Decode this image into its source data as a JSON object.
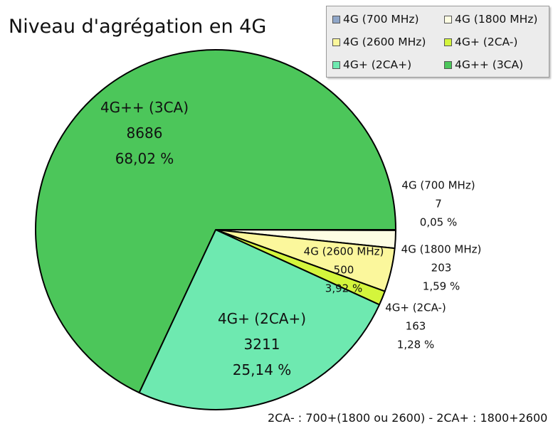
{
  "chart_data": {
    "type": "pie",
    "title": "Niveau d'agrégation en 4G",
    "slices": [
      {
        "label": "4G (700 MHz)",
        "value": 7,
        "percent": "0,05 %",
        "value_text": "7",
        "color": "#8fa6c8"
      },
      {
        "label": "4G (1800 MHz)",
        "value": 203,
        "percent": "1,59 %",
        "value_text": "203",
        "color": "#fdfde3"
      },
      {
        "label": "4G (2600 MHz)",
        "value": 500,
        "percent": "3,92 %",
        "value_text": "500",
        "color": "#fbf79c"
      },
      {
        "label": "4G+ (2CA-)",
        "value": 163,
        "percent": "1,28 %",
        "value_text": "163",
        "color": "#d4f53c"
      },
      {
        "label": "4G+ (2CA+)",
        "value": 3211,
        "percent": "25,14 %",
        "value_text": "3211",
        "color": "#6ee9b0"
      },
      {
        "label": "4G++ (3CA)",
        "value": 8686,
        "percent": "68,02 %",
        "value_text": "8686",
        "color": "#4cc65a"
      }
    ],
    "legend": {
      "placement": "top-right",
      "entries": [
        "4G (700 MHz)",
        "4G (1800 MHz)",
        "4G (2600 MHz)",
        "4G+ (2CA-)",
        "4G+ (2CA+)",
        "4G++ (3CA)"
      ]
    },
    "footnote": "2CA- : 700+(1800 ou 2600) - 2CA+ : 1800+2600"
  }
}
